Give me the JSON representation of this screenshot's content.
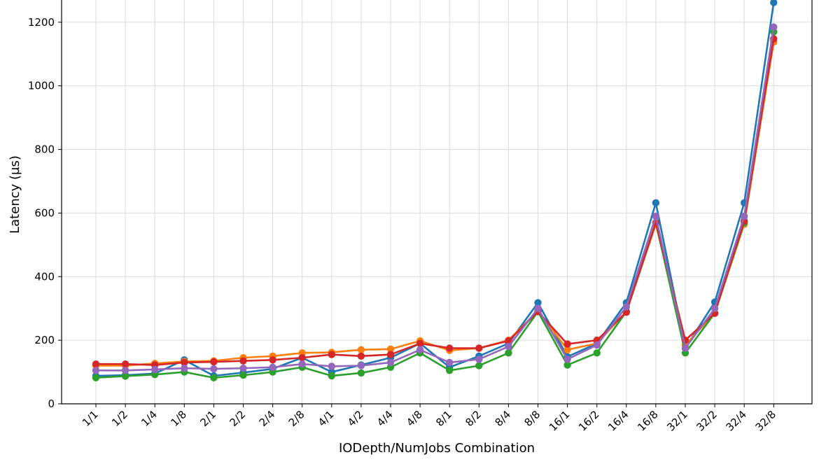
{
  "chart_data": {
    "type": "line",
    "title": "",
    "xlabel": "IODepth/NumJobs Combination",
    "ylabel": "Latency (µs)",
    "ylim": [
      0,
      1270
    ],
    "yticks": [
      0,
      200,
      400,
      600,
      800,
      1000,
      1200
    ],
    "grid": true,
    "categories": [
      "1/1",
      "1/2",
      "1/4",
      "1/8",
      "2/1",
      "2/2",
      "2/4",
      "2/8",
      "4/1",
      "4/2",
      "4/4",
      "4/8",
      "8/1",
      "8/2",
      "8/4",
      "8/8",
      "16/1",
      "16/2",
      "16/4",
      "16/8",
      "32/1",
      "32/2",
      "32/4",
      "32/8"
    ],
    "series": [
      {
        "color": "#1f77b4",
        "values": [
          88,
          90,
          95,
          138,
          88,
          98,
          110,
          145,
          100,
          122,
          145,
          190,
          115,
          150,
          190,
          318,
          148,
          190,
          318,
          632,
          175,
          320,
          632,
          1262
        ]
      },
      {
        "color": "#ff7f0e",
        "values": [
          120,
          120,
          127,
          133,
          135,
          145,
          150,
          160,
          162,
          170,
          172,
          198,
          168,
          175,
          200,
          292,
          170,
          190,
          290,
          565,
          185,
          285,
          565,
          1138
        ]
      },
      {
        "color": "#2ca02c",
        "values": [
          82,
          87,
          92,
          100,
          82,
          90,
          100,
          115,
          88,
          97,
          115,
          160,
          105,
          120,
          160,
          290,
          122,
          160,
          290,
          570,
          160,
          285,
          570,
          1170
        ]
      },
      {
        "color": "#d62728",
        "values": [
          125,
          125,
          122,
          130,
          132,
          135,
          138,
          145,
          155,
          150,
          155,
          190,
          175,
          175,
          198,
          290,
          188,
          200,
          288,
          570,
          200,
          285,
          575,
          1148
        ]
      },
      {
        "color": "#9467bd",
        "values": [
          105,
          105,
          108,
          112,
          110,
          112,
          115,
          125,
          118,
          120,
          130,
          170,
          130,
          140,
          180,
          300,
          140,
          185,
          305,
          590,
          175,
          300,
          590,
          1185
        ]
      }
    ]
  }
}
